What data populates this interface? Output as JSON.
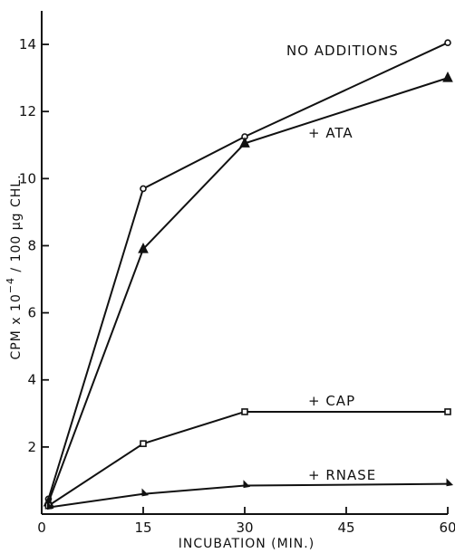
{
  "chart_data": {
    "type": "line",
    "xlabel": "INCUBATION  (MIN.)",
    "ylabel": "CPM x 10^-4 / 100 μg CHL.",
    "ylabel_parts": {
      "pre": "CPM x 10",
      "sup": "−4",
      "post": " / 100 μg  CHL."
    },
    "xlim": [
      0,
      60
    ],
    "ylim": [
      0,
      15
    ],
    "xticks": [
      0,
      15,
      30,
      45,
      60
    ],
    "xtick_labels": [
      "0",
      "15",
      "30",
      "45",
      "60"
    ],
    "yticks": [
      2,
      4,
      6,
      8,
      10,
      12,
      14
    ],
    "ytick_labels": [
      "2",
      "4",
      "6",
      "8",
      "10",
      "12",
      "14"
    ],
    "grid": false,
    "series": [
      {
        "name": "NO ADDITIONS",
        "marker": "circle",
        "x": [
          1,
          15,
          30,
          60
        ],
        "y": [
          0.45,
          9.7,
          11.25,
          14.05
        ]
      },
      {
        "name": "+ ATA",
        "marker": "triangle",
        "x": [
          1,
          15,
          30,
          60
        ],
        "y": [
          0.35,
          7.9,
          11.05,
          13.0
        ]
      },
      {
        "name": "+ CAP",
        "marker": "square",
        "x": [
          1,
          15,
          30,
          60
        ],
        "y": [
          0.25,
          2.1,
          3.05,
          3.05
        ]
      },
      {
        "name": "+ RNASE",
        "marker": "halftri",
        "x": [
          1,
          15,
          30,
          60
        ],
        "y": [
          0.2,
          0.6,
          0.85,
          0.9
        ]
      }
    ]
  }
}
